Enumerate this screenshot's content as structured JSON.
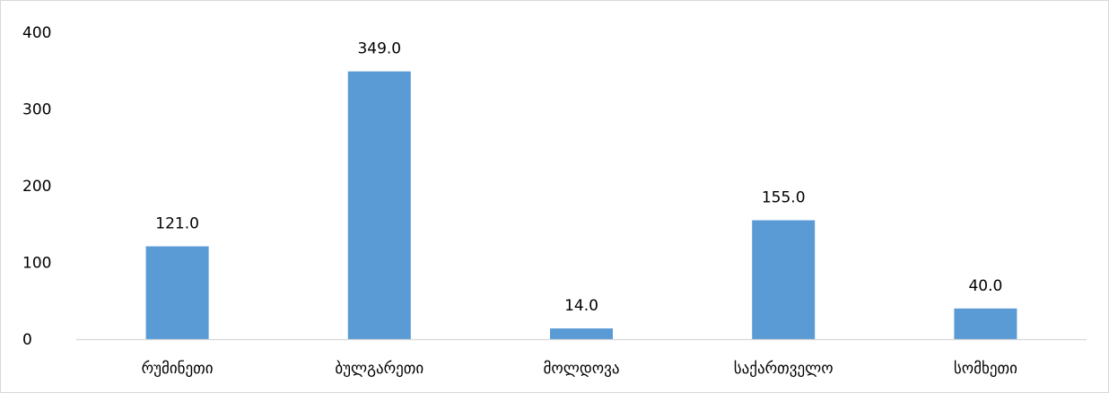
{
  "chart_data": {
    "type": "bar",
    "categories": [
      "რუმინეთი",
      "ბულგარეთი",
      "მოლდოვა",
      "საქართველო",
      "სომხეთი"
    ],
    "values": [
      121.0,
      349.0,
      14.0,
      155.0,
      40.0
    ],
    "data_labels": [
      "121.0",
      "349.0",
      "14.0",
      "155.0",
      "40.0"
    ],
    "title": "",
    "xlabel": "",
    "ylabel": "",
    "ylim": [
      0,
      400
    ],
    "yticks": [
      0,
      100,
      200,
      300,
      400
    ],
    "grid": false,
    "legend": "none",
    "bar_color": "#5b9bd5",
    "axis_color": "#d9d9d9"
  }
}
